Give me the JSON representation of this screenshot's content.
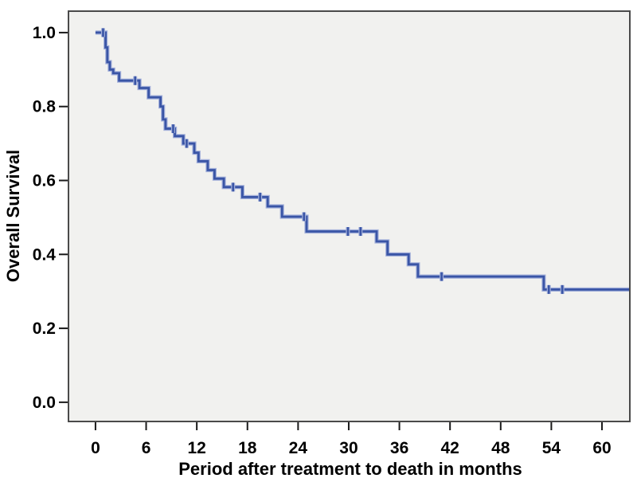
{
  "chart_data": {
    "type": "line",
    "subtype": "kaplan-meier-step",
    "title": "",
    "xlabel": "Period after treatment to death in months",
    "ylabel": "Overall Survival",
    "xlim": [
      -3.2,
      63.3
    ],
    "ylim": [
      -0.052,
      1.058
    ],
    "grid": false,
    "legend": "none",
    "xticks": [
      0,
      6,
      12,
      18,
      24,
      30,
      36,
      42,
      48,
      54,
      60
    ],
    "xtick_labels": [
      "0",
      "6",
      "12",
      "18",
      "24",
      "30",
      "36",
      "42",
      "48",
      "54",
      "60"
    ],
    "yticks": [
      0.0,
      0.2,
      0.4,
      0.6,
      0.8,
      1.0
    ],
    "ytick_labels": [
      "0.0",
      "0.2",
      "0.4",
      "0.6",
      "0.8",
      "1.0"
    ],
    "series": [
      {
        "name": "Overall Survival",
        "steps": [
          [
            0.0,
            1.0
          ],
          [
            1.2,
            0.96
          ],
          [
            1.4,
            0.92
          ],
          [
            1.7,
            0.9
          ],
          [
            2.1,
            0.89
          ],
          [
            2.8,
            0.87
          ],
          [
            5.2,
            0.85
          ],
          [
            6.3,
            0.825
          ],
          [
            7.7,
            0.8
          ],
          [
            8.0,
            0.765
          ],
          [
            8.3,
            0.74
          ],
          [
            9.4,
            0.72
          ],
          [
            10.4,
            0.7
          ],
          [
            11.7,
            0.675
          ],
          [
            12.2,
            0.652
          ],
          [
            13.3,
            0.628
          ],
          [
            14.1,
            0.605
          ],
          [
            15.2,
            0.582
          ],
          [
            17.4,
            0.555
          ],
          [
            20.4,
            0.53
          ],
          [
            22.1,
            0.502
          ],
          [
            25.0,
            0.462
          ],
          [
            33.3,
            0.435
          ],
          [
            34.6,
            0.4
          ],
          [
            37.1,
            0.373
          ],
          [
            38.2,
            0.34
          ],
          [
            53.1,
            0.305
          ]
        ],
        "end_time": 63.3,
        "censor_times": [
          0.9,
          4.7,
          9.2,
          10.8,
          16.3,
          19.5,
          24.7,
          29.9,
          31.4,
          41.0,
          53.7,
          55.3
        ]
      }
    ],
    "colors": {
      "line": "#3a55a6",
      "line_halo": "#a3b0da",
      "plot_background": "#f1f1ef",
      "plot_border": "#4a4a4a",
      "tick": "#1a1a1a",
      "text": "#000000",
      "page_background": "#ffffff"
    }
  }
}
